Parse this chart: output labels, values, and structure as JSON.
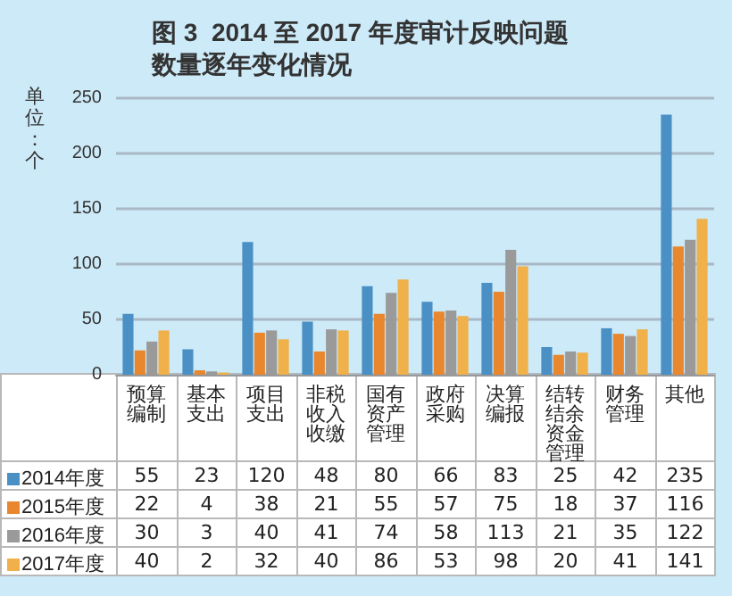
{
  "chart_data": {
    "type": "bar",
    "title": "图 3  2014 至 2017 年度审计反映问题数量逐年变化情况",
    "ylabel": "单位：个",
    "categories": [
      "预算编制",
      "基本支出",
      "项目支出",
      "非税收入收缴",
      "国有资产管理",
      "政府采购",
      "决算编报",
      "结转结余资金管理",
      "财务管理",
      "其他"
    ],
    "series": [
      {
        "name": "2014年度",
        "color": "#4a90c4",
        "values": [
          55,
          23,
          120,
          48,
          80,
          66,
          83,
          25,
          42,
          235
        ]
      },
      {
        "name": "2015年度",
        "color": "#e8872e",
        "values": [
          22,
          4,
          38,
          21,
          55,
          57,
          75,
          18,
          37,
          116
        ]
      },
      {
        "name": "2016年度",
        "color": "#9a9a9a",
        "values": [
          30,
          3,
          40,
          41,
          74,
          58,
          113,
          21,
          35,
          122
        ]
      },
      {
        "name": "2017年度",
        "color": "#f0b04a",
        "values": [
          40,
          2,
          32,
          40,
          86,
          53,
          98,
          20,
          41,
          141
        ]
      }
    ],
    "ylim": [
      0,
      250
    ],
    "yticks": [
      0,
      50,
      100,
      150,
      200,
      250
    ],
    "grid": "y",
    "legend": "bottom left",
    "data_labels": true
  }
}
